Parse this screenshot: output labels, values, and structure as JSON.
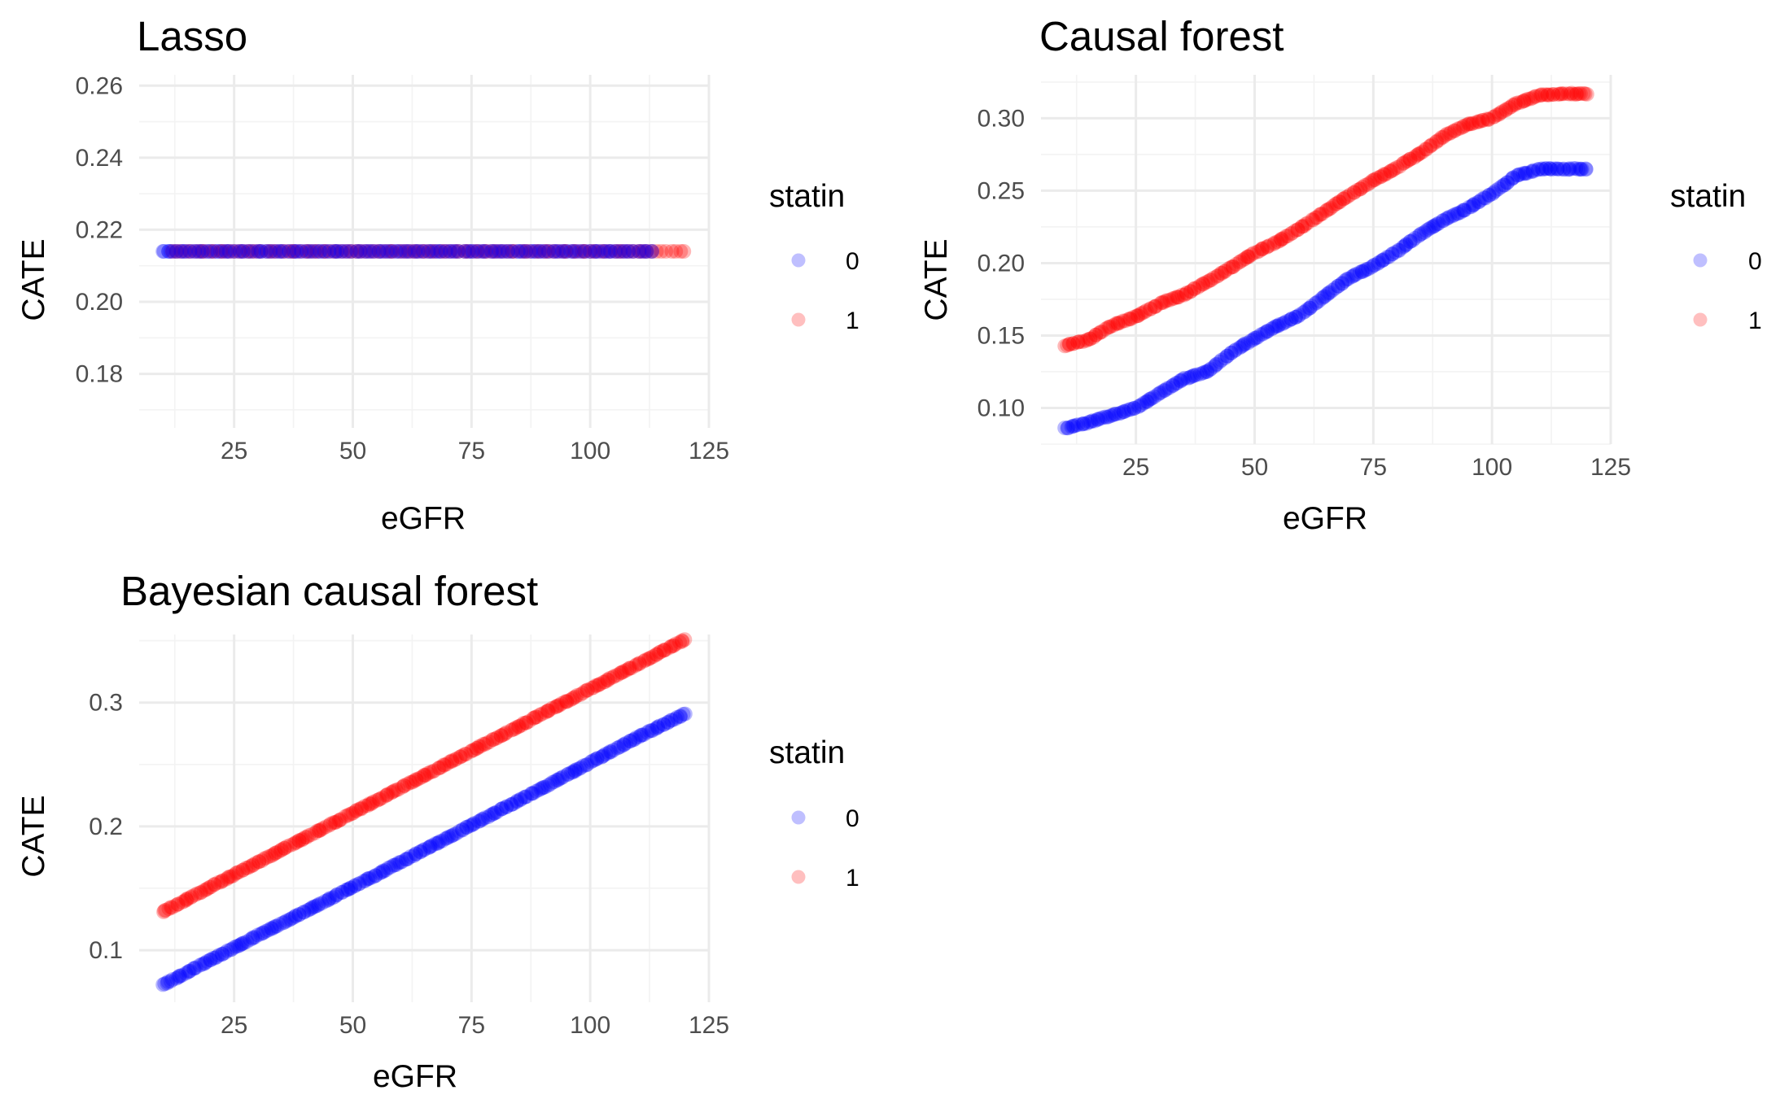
{
  "colors": {
    "statin_0": "#0000ff",
    "statin_1": "#ff0000",
    "grid_major": "#ebebeb",
    "grid_minor": "#f3f3f3",
    "tick_text": "#4d4d4d"
  },
  "legend": {
    "title": "statin",
    "entries": [
      "0",
      "1"
    ]
  },
  "chart_data": [
    {
      "type": "scatter",
      "title": "Lasso",
      "xlabel": "eGFR",
      "ylabel": "CATE",
      "xlim": [
        5,
        125
      ],
      "ylim": [
        0.165,
        0.263
      ],
      "x_ticks": [
        25,
        50,
        75,
        100,
        125
      ],
      "y_ticks": [
        0.18,
        0.2,
        0.22,
        0.24,
        0.26
      ],
      "y_tick_labels": [
        "0.18",
        "0.20",
        "0.22",
        "0.24",
        "0.26"
      ],
      "legend_title": "statin",
      "grid": true,
      "x_range": [
        10,
        120
      ],
      "series": [
        {
          "name": "0",
          "color": "#0000ff",
          "points": [
            [
              10,
              0.214
            ],
            [
              40,
              0.214
            ],
            [
              70,
              0.214
            ],
            [
              100,
              0.214
            ],
            [
              113,
              0.214
            ]
          ]
        },
        {
          "name": "1",
          "color": "#ff0000",
          "points": [
            [
              12,
              0.214
            ],
            [
              40,
              0.214
            ],
            [
              70,
              0.214
            ],
            [
              100,
              0.214
            ],
            [
              120,
              0.214
            ]
          ]
        }
      ]
    },
    {
      "type": "scatter",
      "title": "Causal forest",
      "xlabel": "eGFR",
      "ylabel": "CATE",
      "xlim": [
        5,
        125
      ],
      "ylim": [
        0.075,
        0.33
      ],
      "x_ticks": [
        25,
        50,
        75,
        100,
        125
      ],
      "y_ticks": [
        0.1,
        0.15,
        0.2,
        0.25,
        0.3
      ],
      "y_tick_labels": [
        "0.10",
        "0.15",
        "0.20",
        "0.25",
        "0.30"
      ],
      "legend_title": "statin",
      "grid": true,
      "x_range": [
        10,
        120
      ],
      "series": [
        {
          "name": "0",
          "color": "#0000ff",
          "points": [
            [
              10,
              0.086
            ],
            [
              15,
              0.09
            ],
            [
              20,
              0.095
            ],
            [
              25,
              0.1
            ],
            [
              30,
              0.11
            ],
            [
              35,
              0.12
            ],
            [
              40,
              0.125
            ],
            [
              45,
              0.138
            ],
            [
              50,
              0.148
            ],
            [
              55,
              0.157
            ],
            [
              60,
              0.165
            ],
            [
              65,
              0.178
            ],
            [
              70,
              0.19
            ],
            [
              75,
              0.198
            ],
            [
              80,
              0.208
            ],
            [
              85,
              0.22
            ],
            [
              90,
              0.23
            ],
            [
              95,
              0.238
            ],
            [
              100,
              0.248
            ],
            [
              105,
              0.26
            ],
            [
              110,
              0.265
            ],
            [
              115,
              0.265
            ],
            [
              120,
              0.265
            ]
          ]
        },
        {
          "name": "1",
          "color": "#ff0000",
          "points": [
            [
              10,
              0.143
            ],
            [
              15,
              0.147
            ],
            [
              20,
              0.157
            ],
            [
              25,
              0.163
            ],
            [
              30,
              0.172
            ],
            [
              35,
              0.178
            ],
            [
              40,
              0.187
            ],
            [
              45,
              0.197
            ],
            [
              50,
              0.207
            ],
            [
              55,
              0.215
            ],
            [
              60,
              0.225
            ],
            [
              65,
              0.236
            ],
            [
              70,
              0.247
            ],
            [
              75,
              0.257
            ],
            [
              80,
              0.266
            ],
            [
              85,
              0.276
            ],
            [
              90,
              0.288
            ],
            [
              95,
              0.296
            ],
            [
              100,
              0.3
            ],
            [
              105,
              0.31
            ],
            [
              110,
              0.316
            ],
            [
              115,
              0.317
            ],
            [
              120,
              0.317
            ]
          ]
        }
      ]
    },
    {
      "type": "scatter",
      "title": "Bayesian causal forest",
      "xlabel": "eGFR",
      "ylabel": "CATE",
      "xlim": [
        5,
        125
      ],
      "ylim": [
        0.058,
        0.355
      ],
      "x_ticks": [
        25,
        50,
        75,
        100,
        125
      ],
      "y_ticks": [
        0.1,
        0.2,
        0.3
      ],
      "y_tick_labels": [
        "0.1",
        "0.2",
        "0.3"
      ],
      "legend_title": "statin",
      "grid": true,
      "x_range": [
        10,
        120
      ],
      "series": [
        {
          "name": "0",
          "color": "#0000ff",
          "points": [
            [
              10,
              0.072
            ],
            [
              30,
              0.112
            ],
            [
              50,
              0.151
            ],
            [
              70,
              0.191
            ],
            [
              90,
              0.231
            ],
            [
              110,
              0.272
            ],
            [
              120,
              0.291
            ]
          ]
        },
        {
          "name": "1",
          "color": "#ff0000",
          "points": [
            [
              10,
              0.131
            ],
            [
              30,
              0.171
            ],
            [
              50,
              0.211
            ],
            [
              70,
              0.251
            ],
            [
              90,
              0.291
            ],
            [
              110,
              0.331
            ],
            [
              120,
              0.351
            ]
          ]
        }
      ]
    }
  ]
}
